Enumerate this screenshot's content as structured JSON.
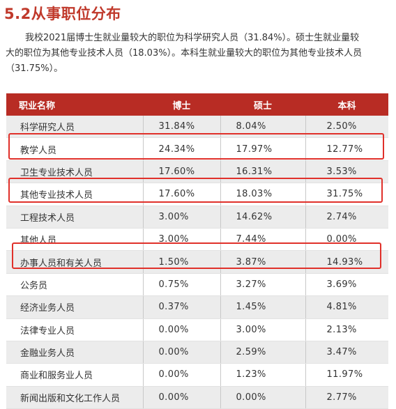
{
  "section_title": "5.2从事职位分布",
  "paragraph_lines": [
    "我校2021届博士生就业量较大的职位为科学研究人员（31.84%）。硕士生就业量较",
    "大的职位为其他专业技术人员（18.03%）。本科生就业量较大的职位为其他专业技术人员",
    "（31.75%）。"
  ],
  "table": {
    "headers": [
      "职业名称",
      "博士",
      "硕士",
      "本科"
    ],
    "rows": [
      {
        "name": "科学研究人员",
        "phd": "31.84%",
        "master": "8.04%",
        "bachelor": "2.50%",
        "highlighted": false
      },
      {
        "name": "教学人员",
        "phd": "24.34%",
        "master": "17.97%",
        "bachelor": "12.77%",
        "highlighted": true
      },
      {
        "name": "卫生专业技术人员",
        "phd": "17.60%",
        "master": "16.31%",
        "bachelor": "3.53%",
        "highlighted": false
      },
      {
        "name": "其他专业技术人员",
        "phd": "17.60%",
        "master": "18.03%",
        "bachelor": "31.75%",
        "highlighted": true
      },
      {
        "name": "工程技术人员",
        "phd": "3.00%",
        "master": "14.62%",
        "bachelor": "2.74%",
        "highlighted": false
      },
      {
        "name": "其他人员",
        "phd": "3.00%",
        "master": "7.44%",
        "bachelor": "0.00%",
        "highlighted": false
      },
      {
        "name": "办事人员和有关人员",
        "phd": "1.50%",
        "master": "3.87%",
        "bachelor": "14.93%",
        "highlighted": true
      },
      {
        "name": "公务员",
        "phd": "0.75%",
        "master": "3.27%",
        "bachelor": "3.69%",
        "highlighted": false
      },
      {
        "name": "经济业务人员",
        "phd": "0.37%",
        "master": "1.45%",
        "bachelor": "4.81%",
        "highlighted": false
      },
      {
        "name": "法律专业人员",
        "phd": "0.00%",
        "master": "3.00%",
        "bachelor": "2.13%",
        "highlighted": false
      },
      {
        "name": "金融业务人员",
        "phd": "0.00%",
        "master": "2.59%",
        "bachelor": "3.47%",
        "highlighted": false
      },
      {
        "name": "商业和服务业人员",
        "phd": "0.00%",
        "master": "1.23%",
        "bachelor": "11.97%",
        "highlighted": false
      },
      {
        "name": "新闻出版和文化工作人员",
        "phd": "0.00%",
        "master": "0.00%",
        "bachelor": "2.77%",
        "highlighted": false
      }
    ]
  },
  "colors": {
    "accent": "#c0392b",
    "header_bg": "#b82c24",
    "highlight_border": "#e0302a",
    "row_alt_bg": "#ececec"
  }
}
